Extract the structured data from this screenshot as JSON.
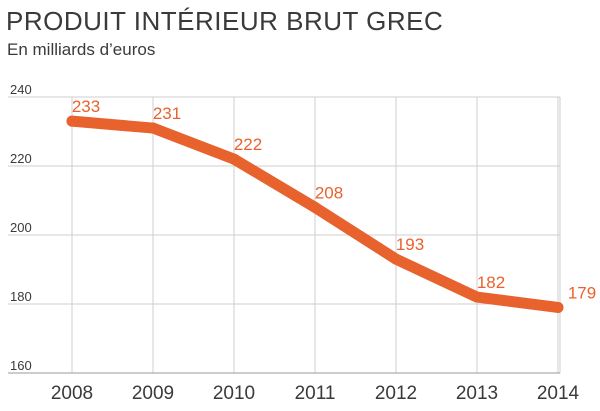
{
  "header": {
    "title": "PRODUIT INTÉRIEUR BRUT GREC",
    "subtitle": "En milliards d’euros"
  },
  "chart_data": {
    "type": "line",
    "title": "PRODUIT INTÉRIEUR BRUT GREC",
    "subtitle": "En milliards d’euros",
    "x": [
      "2008",
      "2009",
      "2010",
      "2011",
      "2012",
      "2013",
      "2014"
    ],
    "series": [
      {
        "values": [
          233,
          231,
          222,
          208,
          193,
          182,
          179
        ]
      }
    ],
    "data_labels": [
      "233",
      "231",
      "222",
      "208",
      "193",
      "182",
      "179"
    ],
    "yticks": [
      "240",
      "220",
      "200",
      "180",
      "160"
    ],
    "ylim": [
      160,
      240
    ],
    "grid": true,
    "colors": {
      "line": "#e8622e",
      "label": "#e8622e",
      "grid": "#cfcfcf",
      "text": "#3a3a3a"
    }
  }
}
